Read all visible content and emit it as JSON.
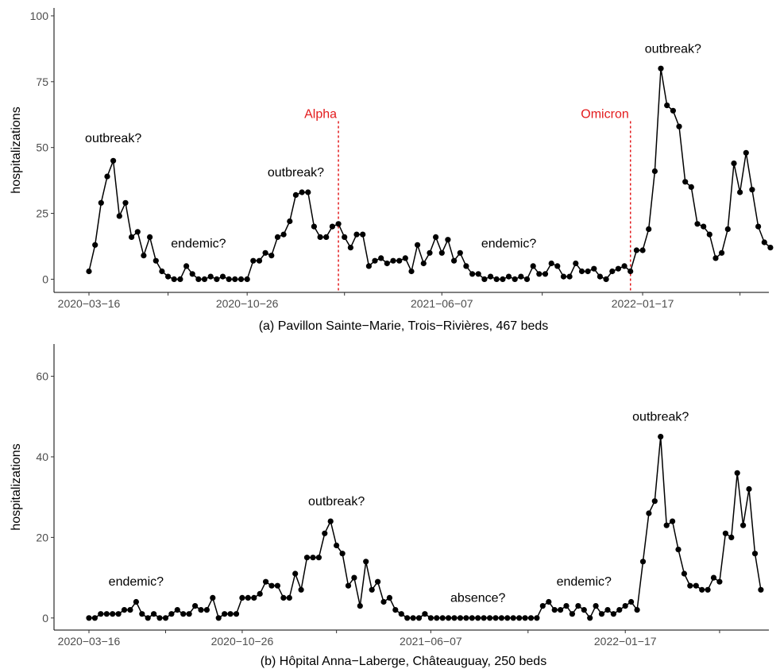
{
  "chart_data": [
    {
      "type": "line",
      "caption": "(a) Pavillon Sainte−Marie, Trois−Rivières, 467 beds",
      "ylabel": "hospitalizations",
      "ylim": [
        -5,
        103
      ],
      "yticks": [
        0,
        25,
        50,
        75,
        100
      ],
      "xticks": [
        "2020−03−16",
        "2020−10−26",
        "2021−06−07",
        "2022−01−17"
      ],
      "values": [
        3,
        13,
        29,
        39,
        45,
        24,
        29,
        16,
        18,
        9,
        16,
        7,
        3,
        1,
        0,
        0,
        5,
        2,
        0,
        0,
        1,
        0,
        1,
        0,
        0,
        0,
        0,
        7,
        7,
        10,
        9,
        16,
        17,
        22,
        32,
        33,
        33,
        20,
        16,
        16,
        20,
        21,
        16,
        12,
        17,
        17,
        5,
        7,
        8,
        6,
        7,
        7,
        8,
        3,
        13,
        6,
        10,
        16,
        10,
        15,
        7,
        10,
        5,
        2,
        2,
        0,
        1,
        0,
        0,
        1,
        0,
        1,
        0,
        5,
        2,
        2,
        6,
        5,
        1,
        1,
        6,
        3,
        3,
        4,
        1,
        0,
        3,
        4,
        5,
        3,
        11,
        11,
        19,
        41,
        80,
        66,
        64,
        58,
        37,
        35,
        21,
        20,
        17,
        8,
        10,
        19,
        44,
        33,
        48,
        34,
        20,
        14,
        12
      ],
      "annotations": [
        {
          "text": "outbreak?",
          "x": 4,
          "y": 52
        },
        {
          "text": "endemic?",
          "x": 18,
          "y": 12
        },
        {
          "text": "outbreak?",
          "x": 34,
          "y": 39
        },
        {
          "text": "endemic?",
          "x": 69,
          "y": 12
        },
        {
          "text": "outbreak?",
          "x": 96,
          "y": 86
        }
      ],
      "variants": [
        {
          "name": "Alpha",
          "x": 41,
          "y_top": 60
        },
        {
          "name": "Omicron",
          "x": 89,
          "y_top": 60
        }
      ],
      "colors": {
        "series": "#000000",
        "variant": "#e31a1c"
      }
    },
    {
      "type": "line",
      "caption": "(b) Hôpital Anna−Laberge, Châteauguay, 250 beds",
      "ylabel": "hospitalizations",
      "ylim": [
        -3,
        68
      ],
      "yticks": [
        0,
        20,
        40,
        60
      ],
      "xticks": [
        "2020−03−16",
        "2020−10−26",
        "2021−06−07",
        "2022−01−17"
      ],
      "values": [
        0,
        0,
        1,
        1,
        1,
        1,
        2,
        2,
        4,
        1,
        0,
        1,
        0,
        0,
        1,
        2,
        1,
        1,
        3,
        2,
        2,
        5,
        0,
        1,
        1,
        1,
        5,
        5,
        5,
        6,
        9,
        8,
        8,
        5,
        5,
        11,
        7,
        15,
        15,
        15,
        21,
        24,
        18,
        16,
        8,
        10,
        3,
        14,
        7,
        9,
        4,
        5,
        2,
        1,
        0,
        0,
        0,
        1,
        0,
        0,
        0,
        0,
        0,
        0,
        0,
        0,
        0,
        0,
        0,
        0,
        0,
        0,
        0,
        0,
        0,
        0,
        0,
        3,
        4,
        2,
        2,
        3,
        1,
        3,
        2,
        0,
        3,
        1,
        2,
        1,
        2,
        3,
        4,
        2,
        14,
        26,
        29,
        45,
        23,
        24,
        17,
        11,
        8,
        8,
        7,
        7,
        10,
        9,
        21,
        20,
        36,
        23,
        32,
        16,
        7
      ],
      "annotations": [
        {
          "text": "endemic?",
          "x": 8,
          "y": 8
        },
        {
          "text": "outbreak?",
          "x": 42,
          "y": 28
        },
        {
          "text": "absence?",
          "x": 66,
          "y": 4
        },
        {
          "text": "endemic?",
          "x": 84,
          "y": 8
        },
        {
          "text": "outbreak?",
          "x": 97,
          "y": 49
        }
      ],
      "colors": {
        "series": "#000000"
      }
    }
  ]
}
